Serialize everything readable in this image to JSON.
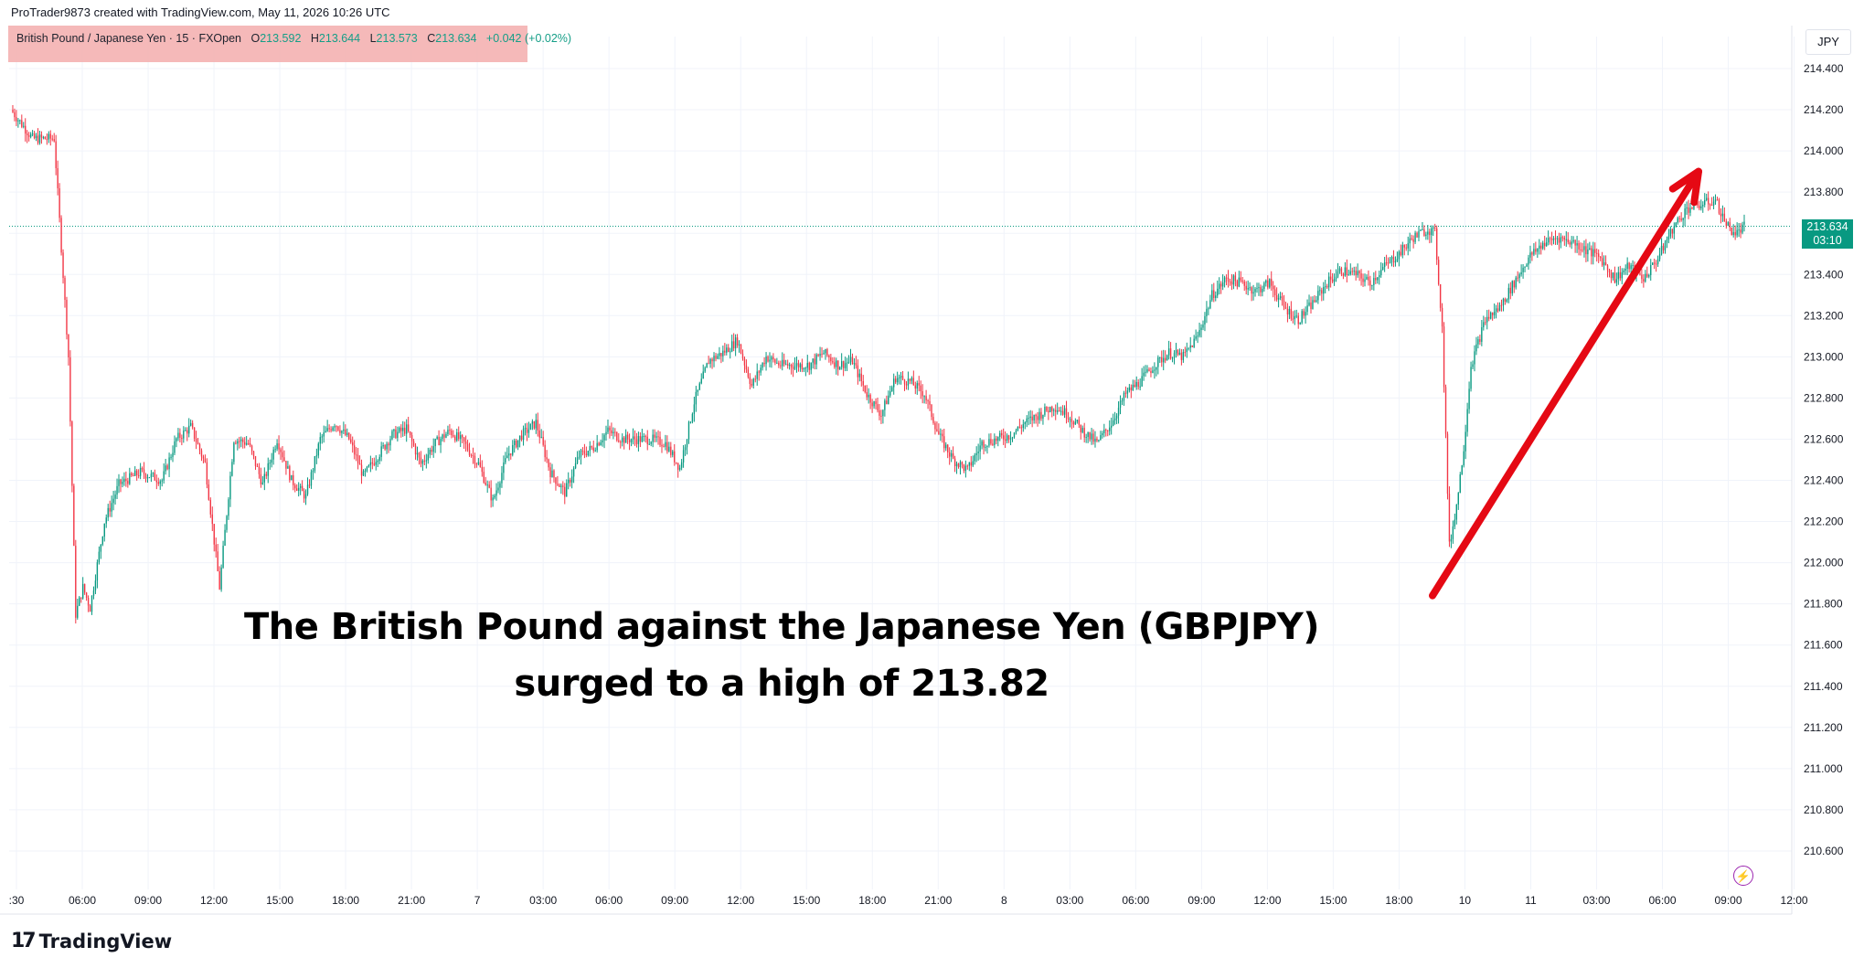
{
  "attribution": "ProTrader9873 created with TradingView.com, May 11, 2026 10:26 UTC",
  "legend": {
    "symbol": "British Pound / Japanese Yen · 15 · FXOpen",
    "open_label": "O",
    "open_value": "213.592",
    "high_label": "H",
    "high_value": "213.644",
    "low_label": "L",
    "low_value": "213.573",
    "close_label": "C",
    "close_value": "213.634",
    "change": "+0.042 (+0.02%)"
  },
  "currency": "JPY",
  "last_price": {
    "price": "213.634",
    "countdown": "03:10"
  },
  "annotation": {
    "line1": "The British Pound against the Japanese Yen (GBPJPY)",
    "line2": "surged to a high of 213.82"
  },
  "brand": {
    "logo": "17",
    "name": "TradingView"
  },
  "icons": {
    "bolt": "lightning-icon"
  },
  "colors": {
    "up": "#089981",
    "down": "#F23645",
    "arrow": "#E50914"
  },
  "chart_data": {
    "type": "candlestick",
    "title": "",
    "ylabel": "",
    "xlabel": "",
    "ylim": [
      210.5,
      214.5
    ],
    "y_ticks": [
      "214.400",
      "214.200",
      "214.000",
      "213.800",
      "213.600",
      "213.400",
      "213.200",
      "213.000",
      "212.800",
      "212.600",
      "212.400",
      "212.200",
      "212.000",
      "211.800",
      "211.600",
      "211.400",
      "211.200",
      "211.000",
      "210.800",
      "210.600"
    ],
    "x_ticks": [
      ":30",
      "06:00",
      "09:00",
      "12:00",
      "15:00",
      "18:00",
      "21:00",
      "7",
      "03:00",
      "06:00",
      "09:00",
      "12:00",
      "15:00",
      "18:00",
      "21:00",
      "8",
      "03:00",
      "06:00",
      "09:00",
      "12:00",
      "15:00",
      "18:00",
      "10",
      "11",
      "03:00",
      "06:00",
      "09:00",
      "12:00"
    ],
    "grid": true,
    "price_line": 213.634,
    "path": [
      [
        0,
        214.2
      ],
      [
        3,
        214.06
      ],
      [
        6,
        214.06
      ],
      [
        8,
        213.0
      ],
      [
        9,
        211.75
      ],
      [
        10,
        211.88
      ],
      [
        11,
        211.78
      ],
      [
        13,
        212.2
      ],
      [
        15,
        212.38
      ],
      [
        18,
        212.44
      ],
      [
        21,
        212.4
      ],
      [
        23,
        212.6
      ],
      [
        25,
        212.66
      ],
      [
        27,
        212.48
      ],
      [
        29,
        211.88
      ],
      [
        31,
        212.6
      ],
      [
        33,
        212.58
      ],
      [
        35,
        212.38
      ],
      [
        37,
        212.6
      ],
      [
        39,
        212.4
      ],
      [
        41,
        212.32
      ],
      [
        43,
        212.6
      ],
      [
        45,
        212.68
      ],
      [
        47,
        212.6
      ],
      [
        49,
        212.42
      ],
      [
        51,
        212.52
      ],
      [
        53,
        212.62
      ],
      [
        55,
        212.65
      ],
      [
        57,
        212.48
      ],
      [
        59,
        212.58
      ],
      [
        61,
        212.64
      ],
      [
        63,
        212.58
      ],
      [
        65,
        212.48
      ],
      [
        67,
        212.3
      ],
      [
        69,
        212.52
      ],
      [
        71,
        212.62
      ],
      [
        73,
        212.68
      ],
      [
        75,
        212.44
      ],
      [
        77,
        212.34
      ],
      [
        79,
        212.52
      ],
      [
        81,
        212.56
      ],
      [
        83,
        212.64
      ],
      [
        85,
        212.6
      ],
      [
        87,
        212.6
      ],
      [
        89,
        212.6
      ],
      [
        91,
        212.58
      ],
      [
        93,
        212.46
      ],
      [
        95,
        212.78
      ],
      [
        97,
        212.98
      ],
      [
        99,
        213.02
      ],
      [
        101,
        213.08
      ],
      [
        103,
        212.86
      ],
      [
        105,
        213.0
      ],
      [
        107,
        212.96
      ],
      [
        109,
        212.96
      ],
      [
        111,
        212.96
      ],
      [
        113,
        213.02
      ],
      [
        115,
        212.96
      ],
      [
        117,
        212.98
      ],
      [
        119,
        212.82
      ],
      [
        121,
        212.72
      ],
      [
        123,
        212.9
      ],
      [
        125,
        212.88
      ],
      [
        127,
        212.82
      ],
      [
        129,
        212.62
      ],
      [
        131,
        212.5
      ],
      [
        133,
        212.45
      ],
      [
        135,
        212.58
      ],
      [
        137,
        212.6
      ],
      [
        139,
        212.62
      ],
      [
        141,
        212.68
      ],
      [
        143,
        212.72
      ],
      [
        145,
        212.76
      ],
      [
        147,
        212.72
      ],
      [
        149,
        212.64
      ],
      [
        151,
        212.58
      ],
      [
        153,
        212.68
      ],
      [
        155,
        212.82
      ],
      [
        157,
        212.88
      ],
      [
        159,
        212.96
      ],
      [
        161,
        213.02
      ],
      [
        163,
        213.0
      ],
      [
        165,
        213.1
      ],
      [
        167,
        213.3
      ],
      [
        169,
        213.38
      ],
      [
        171,
        213.36
      ],
      [
        173,
        213.32
      ],
      [
        175,
        213.36
      ],
      [
        177,
        213.24
      ],
      [
        179,
        213.18
      ],
      [
        181,
        213.26
      ],
      [
        183,
        213.36
      ],
      [
        185,
        213.42
      ],
      [
        187,
        213.4
      ],
      [
        189,
        213.36
      ],
      [
        191,
        213.44
      ],
      [
        193,
        213.5
      ],
      [
        195,
        213.58
      ],
      [
        197,
        213.62
      ],
      [
        198,
        213.6
      ],
      [
        199,
        213.14
      ],
      [
        200,
        212.08
      ],
      [
        201,
        212.28
      ],
      [
        202,
        212.56
      ],
      [
        203,
        212.96
      ],
      [
        205,
        213.18
      ],
      [
        207,
        213.24
      ],
      [
        209,
        213.36
      ],
      [
        211,
        213.48
      ],
      [
        213,
        213.55
      ],
      [
        215,
        213.58
      ],
      [
        217,
        213.56
      ],
      [
        219,
        213.52
      ],
      [
        221,
        213.48
      ],
      [
        223,
        213.38
      ],
      [
        225,
        213.44
      ],
      [
        227,
        213.38
      ],
      [
        229,
        213.48
      ],
      [
        231,
        213.62
      ],
      [
        233,
        213.72
      ],
      [
        235,
        213.74
      ],
      [
        237,
        213.76
      ],
      [
        238,
        213.68
      ],
      [
        239,
        213.62
      ],
      [
        240,
        213.6
      ],
      [
        241,
        213.634
      ]
    ],
    "highlight_high": 213.82,
    "arrow_from_price": 211.84,
    "arrow_to_price": 213.9
  }
}
